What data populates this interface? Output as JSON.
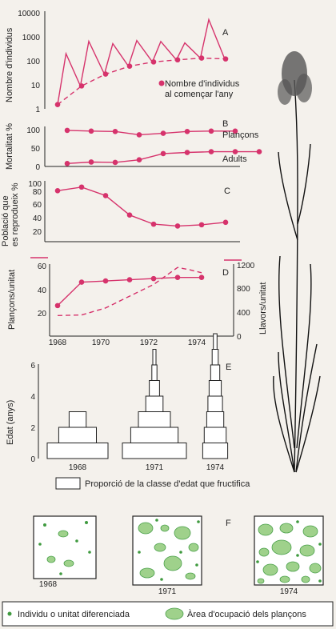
{
  "colors": {
    "accent": "#d6336c",
    "patch_fill": "#9fd18b",
    "patch_dot": "#3f9a3f"
  },
  "chart_data": [
    {
      "panel": "A",
      "type": "line",
      "ylabel": "Nombre d'individus",
      "yscale": "log",
      "ylim": [
        1,
        10000
      ],
      "yticks": [
        "1",
        "10",
        "100",
        "1000",
        "10000"
      ],
      "xlim": [
        1967.7,
        1975.3
      ],
      "series": [
        {
          "name": "",
          "style": "solid",
          "x": [
            1968.0,
            1968.35,
            1968.95,
            1969.3,
            1969.95,
            1970.3,
            1970.95,
            1971.3,
            1971.95,
            1972.3,
            1972.95,
            1973.3,
            1973.95,
            1974.3,
            1974.95
          ],
          "y": [
            1.5,
            200,
            9,
            650,
            28,
            520,
            60,
            700,
            90,
            640,
            110,
            560,
            130,
            5200,
            130
          ]
        },
        {
          "name": "Nombre d'individus al començar l'any",
          "style": "dashed-with-dots",
          "x": [
            1968,
            1969,
            1970,
            1971,
            1972,
            1973,
            1974,
            1975
          ],
          "y": [
            1.5,
            9,
            28,
            60,
            90,
            110,
            130,
            120
          ]
        }
      ]
    },
    {
      "panel": "B",
      "type": "line",
      "ylabel": "Mortalitat %",
      "ylim": [
        0,
        100
      ],
      "yticks": [
        "0",
        "50",
        "100"
      ],
      "series": [
        {
          "name": "Plançons",
          "x": [
            1968,
            1969,
            1970,
            1971,
            1972,
            1973,
            1974,
            1975
          ],
          "y": [
            98,
            96,
            95,
            86,
            90,
            95,
            96,
            96
          ]
        },
        {
          "name": "Adults",
          "x": [
            1968,
            1969,
            1970,
            1971,
            1972,
            1973,
            1974,
            1975,
            1976
          ],
          "y": [
            8,
            12,
            11,
            18,
            35,
            38,
            40,
            40,
            40
          ]
        }
      ]
    },
    {
      "panel": "C",
      "type": "line",
      "ylabel": "Població que es reprodueix %",
      "ylim": [
        10,
        100
      ],
      "yticks": [
        "20",
        "40",
        "60",
        "80",
        "100"
      ],
      "series": [
        {
          "name": "",
          "x": [
            1968,
            1969,
            1970,
            1971,
            1972,
            1973,
            1974,
            1975
          ],
          "y": [
            88,
            94,
            80,
            48,
            33,
            30,
            32,
            36
          ]
        }
      ]
    },
    {
      "panel": "D",
      "type": "line",
      "ylabel": "Plançons/unitat",
      "y2label": "Llavors/unitat",
      "ylim": [
        0,
        60
      ],
      "y2lim": [
        0,
        1200
      ],
      "yticks": [
        "20",
        "40",
        "60"
      ],
      "y2ticks": [
        "0",
        "400",
        "800",
        "1200"
      ],
      "xticks": [
        "1968",
        "1970",
        "1972",
        "1974"
      ],
      "series": [
        {
          "name": "",
          "axis": "left",
          "style": "solid-with-dots",
          "x": [
            1968,
            1969,
            1970,
            1971,
            1972,
            1973,
            1974
          ],
          "y": [
            26,
            46,
            47,
            48,
            49,
            50,
            50
          ]
        },
        {
          "name": "",
          "axis": "right",
          "style": "dashed",
          "x": [
            1968,
            1969,
            1970,
            1971,
            1972,
            1973,
            1973.5,
            1974
          ],
          "y": [
            350,
            360,
            480,
            680,
            880,
            1170,
            1130,
            1080
          ]
        }
      ]
    },
    {
      "panel": "E",
      "type": "bar",
      "ylabel": "Edat (anys)",
      "ylim": [
        0,
        6
      ],
      "yticks": [
        "0",
        "2",
        "4",
        "6"
      ],
      "categories": [
        "1968",
        "1971",
        "1974"
      ],
      "legend": "Proporció de la classe d'edat que fructifica",
      "age_structure": [
        {
          "year": "1968",
          "widths": [
            1.0,
            0.62,
            0.28
          ]
        },
        {
          "year": "1971",
          "widths": [
            1.0,
            0.74,
            0.5,
            0.27,
            0.16,
            0.08,
            0.05
          ]
        },
        {
          "year": "1974",
          "widths": [
            0.82,
            0.72,
            0.56,
            0.48,
            0.4,
            0.3,
            0.2,
            0.12
          ]
        }
      ]
    },
    {
      "panel": "F",
      "type": "map",
      "maps": [
        {
          "year": "1968",
          "patches": 3,
          "dots": 6
        },
        {
          "year": "1971",
          "patches": 8,
          "dots": 6
        },
        {
          "year": "1974",
          "patches": 12,
          "dots": 5
        }
      ],
      "legend": [
        {
          "symbol": "dot",
          "label": "Individu o unitat diferenciada"
        },
        {
          "symbol": "patch",
          "label": "Àrea d'ocupació dels plançons"
        }
      ]
    }
  ],
  "panels": {
    "A": "A",
    "B": "B",
    "C": "C",
    "D": "D",
    "E": "E",
    "F": "F"
  },
  "labels": {
    "a_legend_1": "Nombre d'individus",
    "a_legend_2": "al començar l'any",
    "b_top": "Plançons",
    "b_bottom": "Adults",
    "c_ylabel_1": "Població que",
    "c_ylabel_2": "es reprodueix %"
  }
}
